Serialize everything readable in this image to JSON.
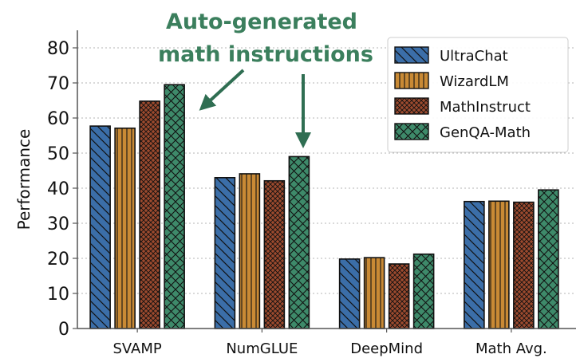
{
  "chart_data": {
    "type": "bar",
    "ylabel": "Performance",
    "ylim": [
      0,
      85
    ],
    "yticks": [
      0,
      10,
      20,
      30,
      40,
      50,
      60,
      70,
      80
    ],
    "grid": "horizontal-dotted",
    "legend_position": "top-right",
    "categories": [
      "SVAMP",
      "NumGLUE",
      "DeepMind",
      "Math Avg."
    ],
    "series": [
      {
        "name": "UltraChat",
        "values": [
          57.7,
          43.0,
          19.8,
          36.2
        ],
        "color": "#3b6ea8",
        "pattern": "diagonal"
      },
      {
        "name": "WizardLM",
        "values": [
          57.1,
          44.1,
          20.2,
          36.3
        ],
        "color": "#c98a35",
        "pattern": "vertical"
      },
      {
        "name": "MathInstruct",
        "values": [
          64.8,
          42.1,
          18.4,
          36.0
        ],
        "color": "#9c4a2e",
        "pattern": "cross"
      },
      {
        "name": "GenQA-Math",
        "values": [
          69.5,
          49.0,
          21.2,
          39.5
        ],
        "color": "#3e8a6a",
        "pattern": "diag-cross"
      }
    ],
    "annotation": {
      "lines": [
        "Auto-generated",
        "math instructions"
      ],
      "color": "#3b7f5d"
    }
  }
}
